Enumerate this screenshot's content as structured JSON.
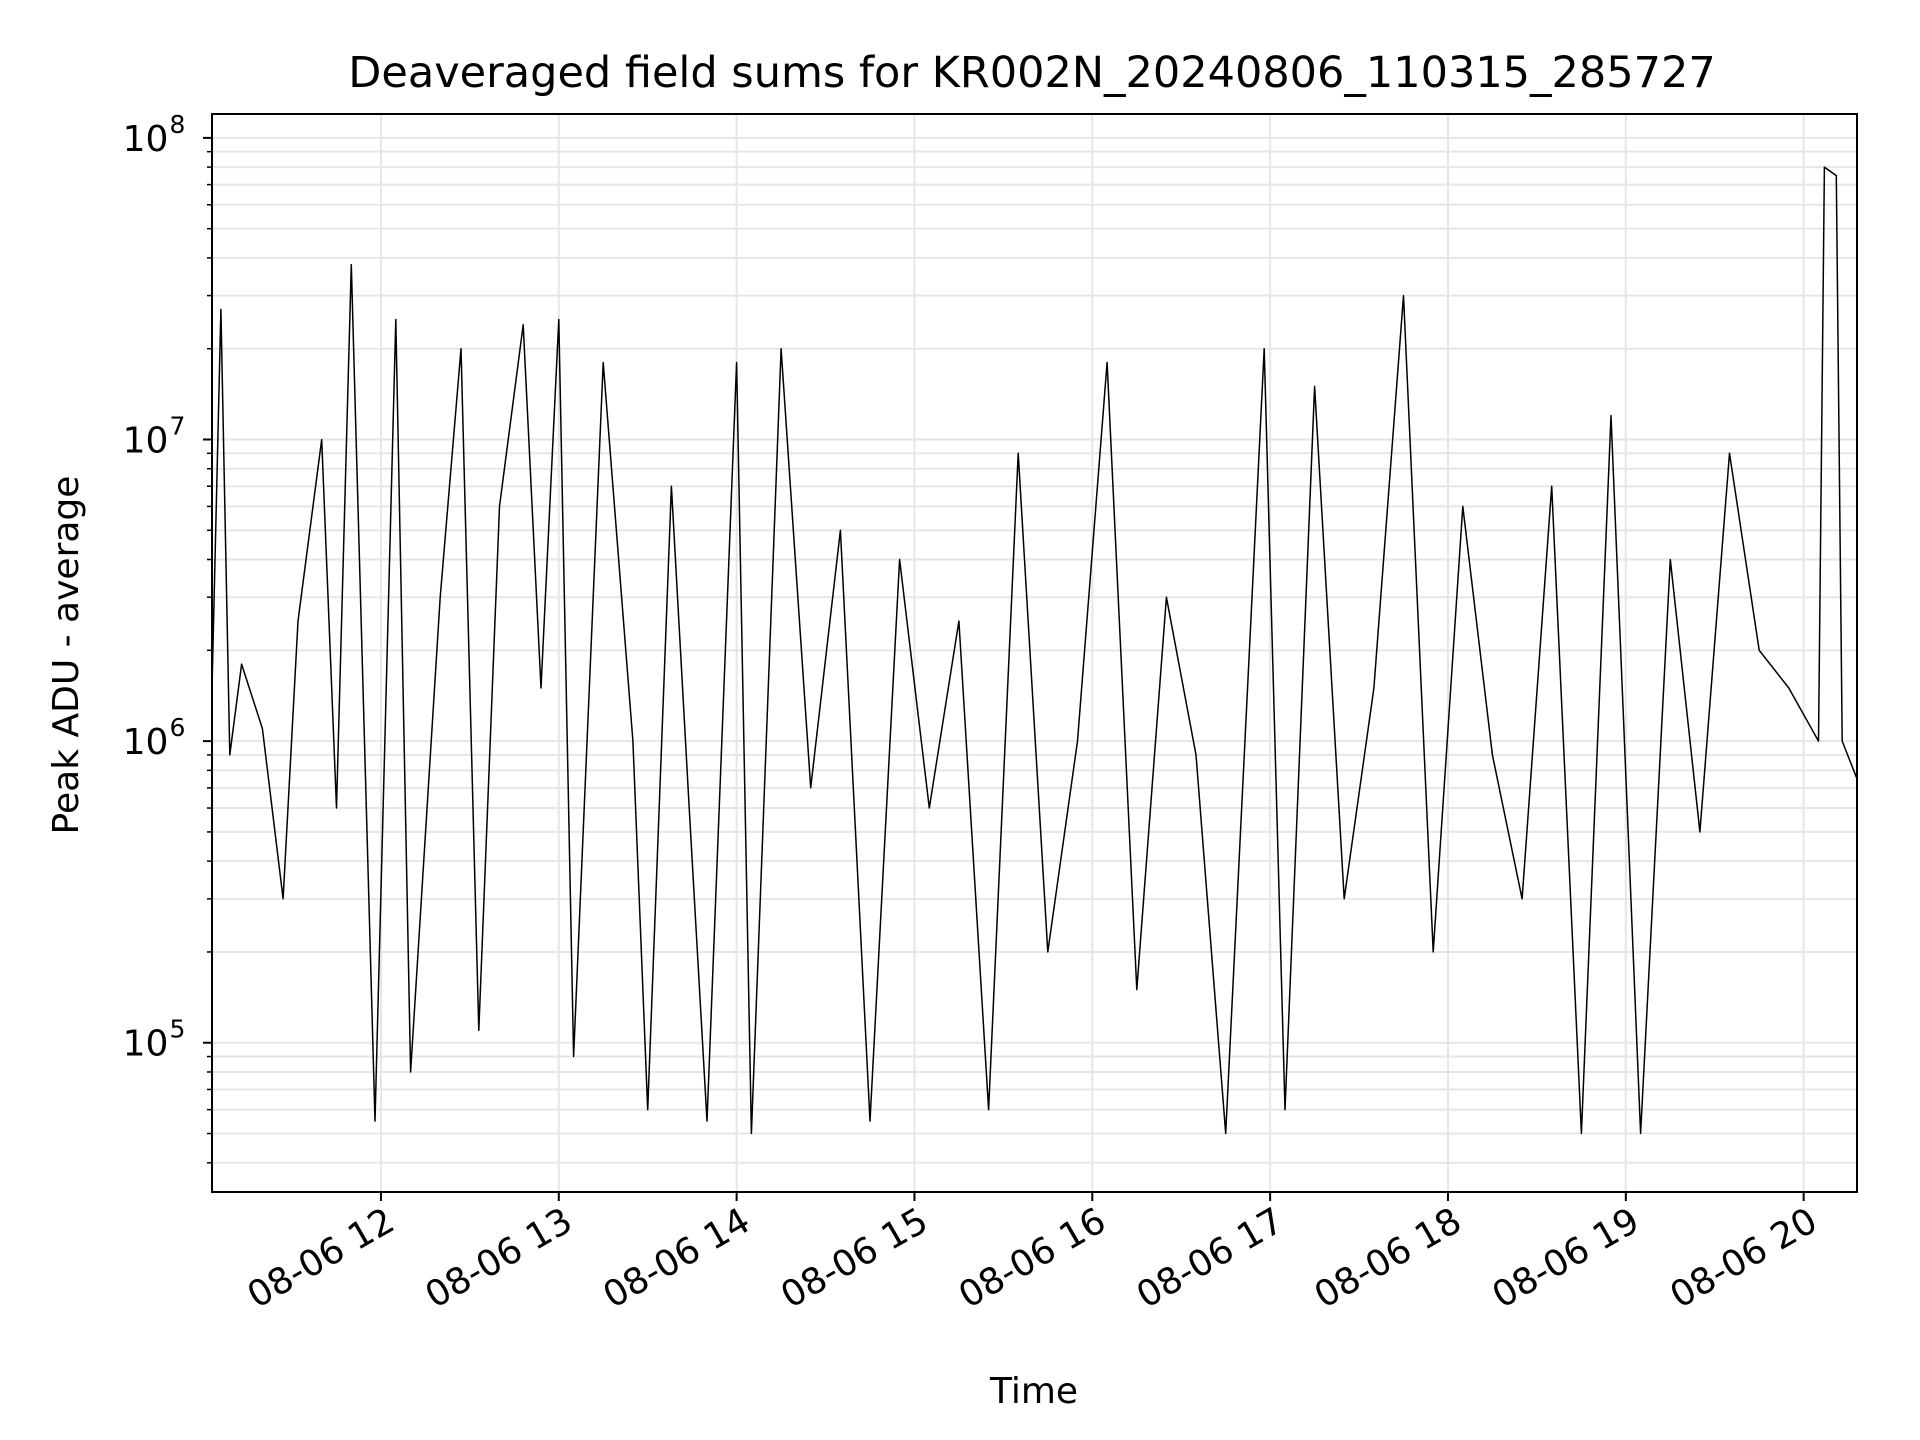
{
  "chart_data": {
    "type": "line",
    "title": "Deaveraged field sums for KR002N_20240806_110315_285727",
    "xlabel": "Time",
    "ylabel": "Peak ADU - average",
    "yscale": "log",
    "xlim": [
      "08-06 11:03",
      "08-06 20:18"
    ],
    "ylim": [
      32000,
      120000000
    ],
    "x_ticks": [
      "08-06 12",
      "08-06 13",
      "08-06 14",
      "08-06 15",
      "08-06 16",
      "08-06 17",
      "08-06 18",
      "08-06 19",
      "08-06 20"
    ],
    "y_ticks": [
      {
        "base": "10",
        "exp": "5"
      },
      {
        "base": "10",
        "exp": "6"
      },
      {
        "base": "10",
        "exp": "7"
      },
      {
        "base": "10",
        "exp": "8"
      }
    ],
    "grid": true,
    "line_color": "#000000",
    "series": [
      {
        "x": [
          "08-06 11:03",
          "08-06 11:06",
          "08-06 11:09",
          "08-06 11:13",
          "08-06 11:20",
          "08-06 11:27",
          "08-06 11:32",
          "08-06 11:40",
          "08-06 11:45",
          "08-06 11:50",
          "08-06 11:58",
          "08-06 12:05",
          "08-06 12:10",
          "08-06 12:20",
          "08-06 12:27",
          "08-06 12:33",
          "08-06 12:40",
          "08-06 12:48",
          "08-06 12:54",
          "08-06 13:00",
          "08-06 13:05",
          "08-06 13:15",
          "08-06 13:25",
          "08-06 13:30",
          "08-06 13:38",
          "08-06 13:44",
          "08-06 13:50",
          "08-06 14:00",
          "08-06 14:05",
          "08-06 14:15",
          "08-06 14:25",
          "08-06 14:35",
          "08-06 14:45",
          "08-06 14:55",
          "08-06 15:05",
          "08-06 15:15",
          "08-06 15:25",
          "08-06 15:35",
          "08-06 15:45",
          "08-06 15:55",
          "08-06 16:05",
          "08-06 16:15",
          "08-06 16:25",
          "08-06 16:35",
          "08-06 16:45",
          "08-06 16:58",
          "08-06 17:05",
          "08-06 17:15",
          "08-06 17:25",
          "08-06 17:35",
          "08-06 17:45",
          "08-06 17:55",
          "08-06 18:05",
          "08-06 18:15",
          "08-06 18:25",
          "08-06 18:35",
          "08-06 18:45",
          "08-06 18:55",
          "08-06 19:05",
          "08-06 19:15",
          "08-06 19:25",
          "08-06 19:35",
          "08-06 19:45",
          "08-06 19:55",
          "08-06 20:05",
          "08-06 20:07",
          "08-06 20:11",
          "08-06 20:13",
          "08-06 20:18"
        ],
        "y": [
          1500000,
          27000000,
          900000,
          1800000,
          1100000,
          300000,
          2500000,
          10000000,
          600000,
          38000000,
          55000,
          25000000,
          80000,
          3000000,
          20000000,
          110000,
          6000000,
          24000000,
          1500000,
          25000000,
          90000,
          18000000,
          1000000,
          60000,
          7000000,
          600000,
          55000,
          18000000,
          50000,
          20000000,
          700000,
          5000000,
          55000,
          4000000,
          600000,
          2500000,
          60000,
          9000000,
          200000,
          1000000,
          18000000,
          150000,
          3000000,
          900000,
          50000,
          20000000,
          60000,
          15000000,
          300000,
          1500000,
          30000000,
          200000,
          6000000,
          900000,
          300000,
          7000000,
          50000,
          12000000,
          50000,
          4000000,
          500000,
          9000000,
          2000000,
          1500000,
          1000000,
          80000000,
          75000000,
          1000000,
          750000
        ]
      }
    ]
  }
}
